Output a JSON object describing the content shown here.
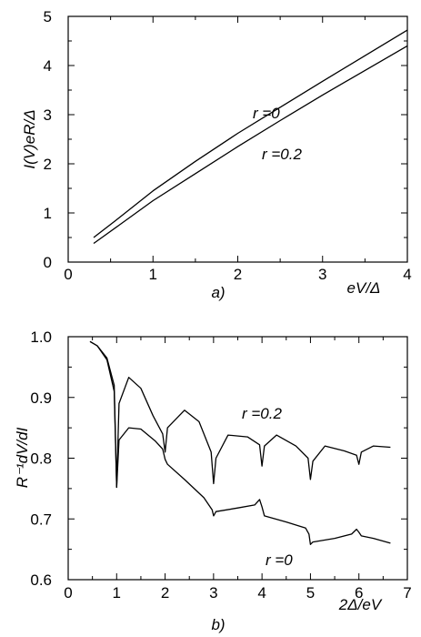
{
  "chart_data": [
    {
      "type": "line",
      "panel_label": "a)",
      "xlabel": "eV/Δ",
      "ylabel": "I(V)eR/Δ",
      "xlim": [
        0,
        4
      ],
      "ylim": [
        0,
        5
      ],
      "x_ticks": [
        "0",
        "1",
        "2",
        "3",
        "4"
      ],
      "y_ticks": [
        "0",
        "1",
        "2",
        "3",
        "4",
        "5"
      ],
      "grid": false,
      "series": [
        {
          "name": "r =0",
          "x": [
            0.3,
            0.6,
            1.0,
            1.5,
            2.0,
            2.5,
            3.0,
            3.5,
            4.0
          ],
          "y": [
            0.5,
            0.9,
            1.45,
            2.05,
            2.62,
            3.15,
            3.68,
            4.2,
            4.72
          ]
        },
        {
          "name": "r =0.2",
          "x": [
            0.3,
            0.6,
            1.0,
            1.5,
            2.0,
            2.5,
            3.0,
            3.5,
            4.0
          ],
          "y": [
            0.38,
            0.75,
            1.25,
            1.8,
            2.35,
            2.88,
            3.4,
            3.9,
            4.4
          ]
        }
      ]
    },
    {
      "type": "line",
      "panel_label": "b)",
      "xlabel": "2Δ/eV",
      "ylabel": "R⁻¹dV/dI",
      "xlim": [
        0,
        7
      ],
      "ylim": [
        0.6,
        1.0
      ],
      "x_ticks": [
        "0",
        "1",
        "2",
        "3",
        "4",
        "5",
        "6",
        "7"
      ],
      "y_ticks": [
        "0.6",
        "0.7",
        "0.8",
        "0.9",
        "1.0"
      ],
      "grid": false,
      "series": [
        {
          "name": "r =0.2",
          "x": [
            0.45,
            0.6,
            0.8,
            0.95,
            1.0,
            1.05,
            1.25,
            1.5,
            1.75,
            1.95,
            2.0,
            2.05,
            2.4,
            2.7,
            2.95,
            3.0,
            3.05,
            3.3,
            3.7,
            3.95,
            4.0,
            4.05,
            4.3,
            4.7,
            4.95,
            5.0,
            5.05,
            5.3,
            5.7,
            5.95,
            6.0,
            6.05,
            6.3,
            6.65
          ],
          "y": [
            0.992,
            0.985,
            0.965,
            0.92,
            0.752,
            0.89,
            0.933,
            0.915,
            0.87,
            0.84,
            0.81,
            0.85,
            0.879,
            0.86,
            0.81,
            0.758,
            0.8,
            0.838,
            0.835,
            0.822,
            0.787,
            0.82,
            0.838,
            0.82,
            0.8,
            0.765,
            0.795,
            0.82,
            0.812,
            0.805,
            0.79,
            0.81,
            0.82,
            0.818
          ]
        },
        {
          "name": "r =0",
          "x": [
            0.45,
            0.6,
            0.8,
            0.95,
            1.0,
            1.05,
            1.25,
            1.5,
            1.8,
            1.95,
            2.0,
            2.05,
            2.4,
            2.8,
            2.97,
            3.0,
            3.05,
            3.5,
            3.85,
            3.95,
            4.0,
            4.05,
            4.5,
            4.9,
            4.97,
            5.0,
            5.05,
            5.5,
            5.85,
            5.95,
            6.0,
            6.05,
            6.3,
            6.65
          ],
          "y": [
            0.992,
            0.985,
            0.962,
            0.91,
            0.752,
            0.83,
            0.85,
            0.848,
            0.828,
            0.815,
            0.798,
            0.79,
            0.765,
            0.735,
            0.715,
            0.705,
            0.712,
            0.718,
            0.723,
            0.732,
            0.72,
            0.705,
            0.695,
            0.685,
            0.675,
            0.658,
            0.662,
            0.668,
            0.675,
            0.683,
            0.678,
            0.672,
            0.668,
            0.66
          ]
        }
      ]
    }
  ]
}
